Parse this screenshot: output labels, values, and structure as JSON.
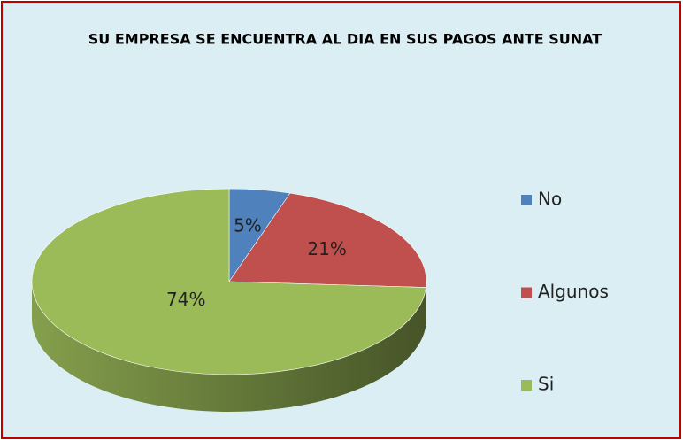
{
  "chart_data": {
    "type": "pie3d",
    "title": "SU EMPRESA SE ENCUENTRA AL DIA EN SUS PAGOS ANTE SUNAT",
    "categories": [
      "No",
      "Algunos",
      "Si"
    ],
    "values": [
      5,
      21,
      74
    ],
    "value_labels": [
      "5%",
      "21%",
      "74%"
    ],
    "colors": [
      "#4f81bd",
      "#c0504d",
      "#9bbb59"
    ],
    "legend": "right"
  }
}
